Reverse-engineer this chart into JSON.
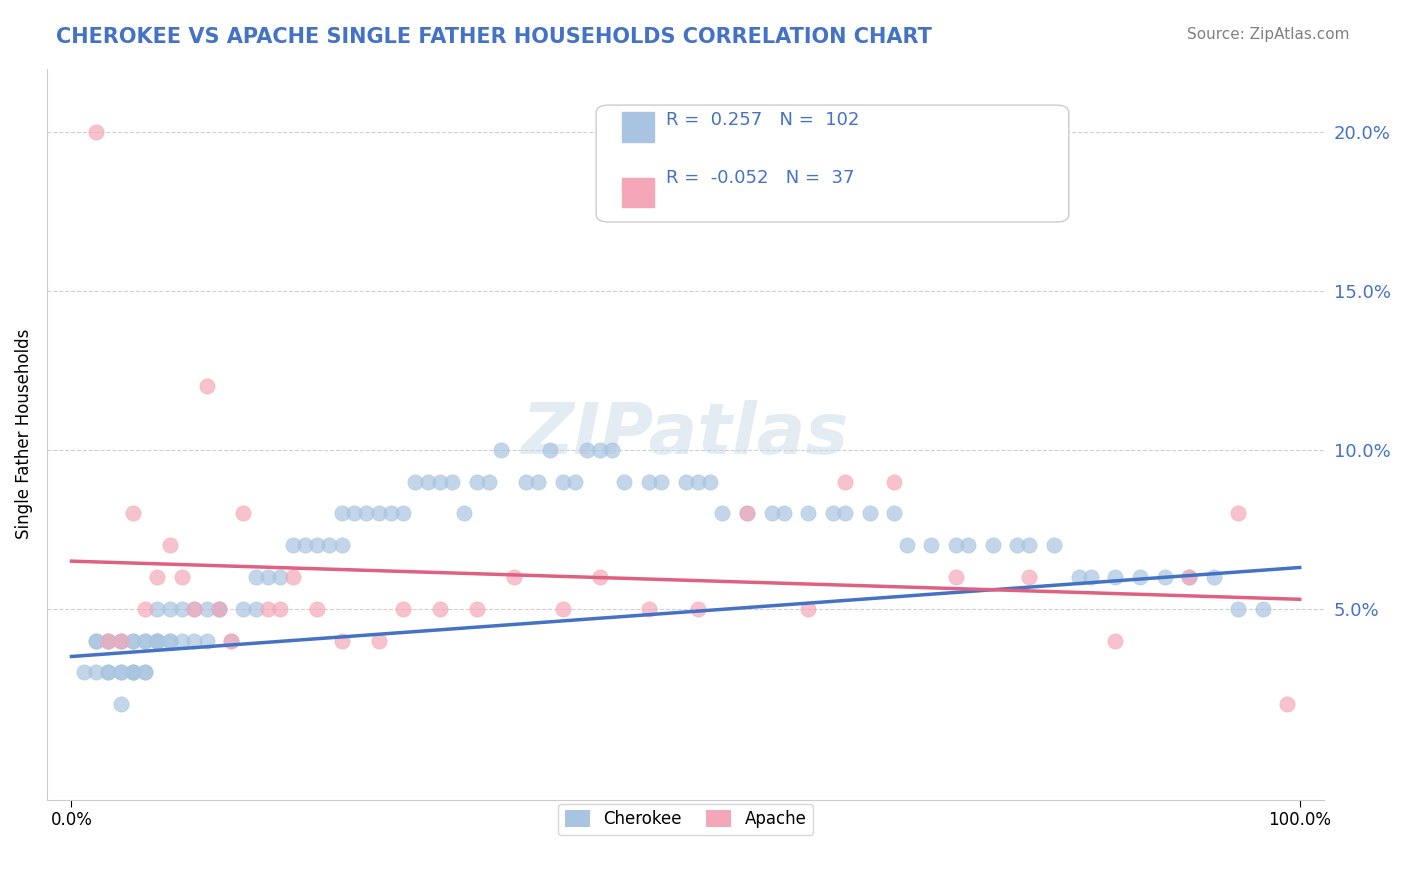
{
  "title": "CHEROKEE VS APACHE SINGLE FATHER HOUSEHOLDS CORRELATION CHART",
  "source": "Source: ZipAtlas.com",
  "ylabel": "Single Father Households",
  "xlabel": "",
  "xlim": [
    0,
    100
  ],
  "ylim": [
    0,
    22
  ],
  "xtick_labels": [
    "0.0%",
    "100.0%"
  ],
  "ytick_labels_left": [],
  "ytick_labels_right": [
    "20.0%",
    "15.0%",
    "10.0%",
    "5.0%"
  ],
  "ytick_values_right": [
    20,
    15,
    10,
    5
  ],
  "watermark": "ZIPatlas",
  "legend_R_cherokee": "0.257",
  "legend_N_cherokee": "102",
  "legend_R_apache": "-0.052",
  "legend_N_apache": "37",
  "cherokee_color": "#a8c4e0",
  "apache_color": "#f4a7b9",
  "cherokee_line_color": "#4472c4",
  "apache_line_color": "#e06080",
  "background_color": "#ffffff",
  "grid_color": "#d0d0d0",
  "title_color": "#4472c4",
  "cherokee_x": [
    1,
    2,
    2,
    2,
    3,
    3,
    3,
    3,
    4,
    4,
    4,
    4,
    4,
    5,
    5,
    5,
    5,
    5,
    6,
    6,
    6,
    6,
    7,
    7,
    7,
    7,
    8,
    8,
    8,
    9,
    9,
    10,
    10,
    11,
    11,
    12,
    12,
    13,
    14,
    15,
    15,
    16,
    17,
    18,
    19,
    20,
    21,
    22,
    22,
    23,
    24,
    25,
    26,
    27,
    28,
    29,
    30,
    31,
    32,
    33,
    34,
    35,
    37,
    38,
    39,
    40,
    41,
    42,
    43,
    44,
    45,
    47,
    48,
    50,
    51,
    52,
    53,
    55,
    57,
    58,
    60,
    62,
    63,
    65,
    67,
    68,
    70,
    72,
    73,
    75,
    77,
    78,
    80,
    82,
    83,
    85,
    87,
    89,
    91,
    93,
    95,
    97
  ],
  "cherokee_y": [
    3,
    4,
    3,
    4,
    3,
    4,
    3,
    4,
    2,
    3,
    4,
    3,
    4,
    3,
    4,
    3,
    4,
    3,
    3,
    4,
    3,
    4,
    4,
    4,
    5,
    4,
    4,
    5,
    4,
    4,
    5,
    5,
    4,
    5,
    4,
    5,
    5,
    4,
    5,
    6,
    5,
    6,
    6,
    7,
    7,
    7,
    7,
    7,
    8,
    8,
    8,
    8,
    8,
    8,
    9,
    9,
    9,
    9,
    8,
    9,
    9,
    10,
    9,
    9,
    10,
    9,
    9,
    10,
    10,
    10,
    9,
    9,
    9,
    9,
    9,
    9,
    8,
    8,
    8,
    8,
    8,
    8,
    8,
    8,
    8,
    7,
    7,
    7,
    7,
    7,
    7,
    7,
    7,
    6,
    6,
    6,
    6,
    6,
    6,
    6,
    5,
    5
  ],
  "apache_x": [
    2,
    3,
    4,
    5,
    6,
    7,
    8,
    9,
    10,
    11,
    12,
    13,
    14,
    16,
    17,
    18,
    20,
    22,
    25,
    27,
    30,
    33,
    36,
    40,
    43,
    47,
    51,
    55,
    60,
    63,
    67,
    72,
    78,
    85,
    91,
    95,
    99
  ],
  "apache_y": [
    20,
    4,
    4,
    8,
    5,
    6,
    7,
    6,
    5,
    12,
    5,
    4,
    8,
    5,
    5,
    6,
    5,
    4,
    4,
    5,
    5,
    5,
    6,
    5,
    6,
    5,
    5,
    8,
    5,
    9,
    9,
    6,
    6,
    4,
    6,
    8,
    2
  ],
  "cherokee_slope": 0.028,
  "cherokee_intercept": 3.5,
  "apache_slope": -0.012,
  "apache_intercept": 6.5
}
